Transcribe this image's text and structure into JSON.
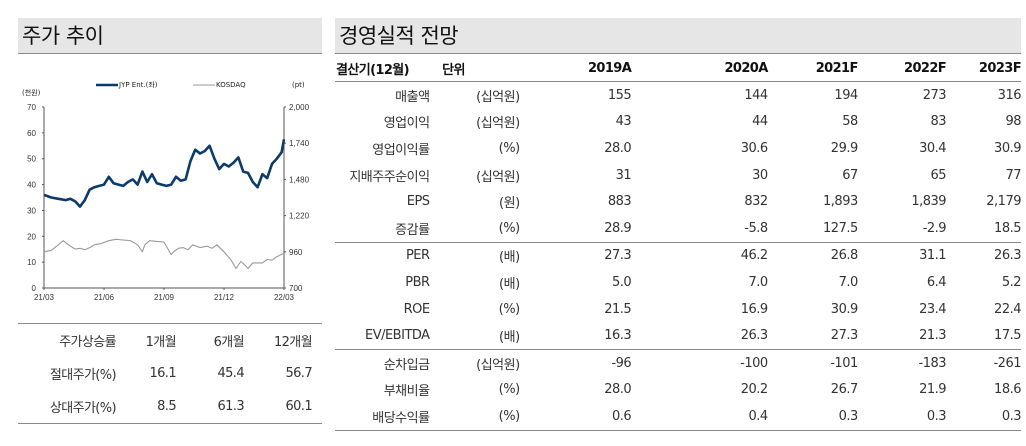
{
  "left_panel": {
    "title": "주가 추이",
    "returns_table": {
      "headers": [
        "주가상승률",
        "1개월",
        "6개월",
        "12개월"
      ],
      "rows": [
        {
          "label": "절대주가(%)",
          "values": [
            "16.1",
            "45.4",
            "56.7"
          ]
        },
        {
          "label": "상대주가(%)",
          "values": [
            "8.5",
            "61.3",
            "60.1"
          ]
        }
      ]
    }
  },
  "chart_data": {
    "type": "line",
    "title": "",
    "left_unit": "(천원)",
    "right_unit": "(pt)",
    "legend": [
      "JYP Ent.(좌)",
      "KOSDAQ"
    ],
    "legend_position": "top",
    "x_ticks": [
      "21/03",
      "21/06",
      "21/09",
      "21/12",
      "22/03"
    ],
    "y_left_ticks": [
      "0",
      "10",
      "20",
      "30",
      "40",
      "50",
      "60",
      "70"
    ],
    "y_left_range": [
      0,
      70
    ],
    "y_right_ticks": [
      "700",
      "960",
      "1,220",
      "1,480",
      "1,740",
      "2,000"
    ],
    "y_right_range": [
      700,
      2000
    ],
    "grid": false,
    "series": [
      {
        "name": "JYP Ent.(좌)",
        "axis": "left",
        "color": "#0b3a6b",
        "x_frac": [
          0,
          0.03,
          0.06,
          0.09,
          0.11,
          0.13,
          0.15,
          0.17,
          0.19,
          0.21,
          0.23,
          0.25,
          0.27,
          0.29,
          0.31,
          0.33,
          0.35,
          0.37,
          0.39,
          0.41,
          0.43,
          0.45,
          0.47,
          0.49,
          0.51,
          0.53,
          0.55,
          0.57,
          0.59,
          0.61,
          0.63,
          0.65,
          0.67,
          0.69,
          0.71,
          0.73,
          0.75,
          0.77,
          0.79,
          0.81,
          0.83,
          0.85,
          0.87,
          0.89,
          0.91,
          0.93,
          0.95,
          0.97,
          0.99,
          1.0
        ],
        "values": [
          36,
          35,
          34.5,
          34,
          34.5,
          33.5,
          31.5,
          34,
          38,
          39,
          39.5,
          40,
          43,
          40.5,
          40,
          39.5,
          41,
          42,
          40,
          45,
          41,
          44,
          40.5,
          40,
          39.5,
          40,
          43,
          41.5,
          42,
          49,
          53.5,
          52,
          53,
          55,
          50,
          46,
          48,
          47,
          48.5,
          50.5,
          45,
          44.5,
          41,
          39,
          44,
          42.5,
          48,
          50,
          52.5,
          57.5
        ]
      },
      {
        "name": "KOSDAQ",
        "axis": "right",
        "color": "#9a9a9a",
        "x_frac": [
          0,
          0.03,
          0.06,
          0.08,
          0.11,
          0.13,
          0.15,
          0.17,
          0.19,
          0.21,
          0.24,
          0.27,
          0.3,
          0.33,
          0.36,
          0.39,
          0.41,
          0.42,
          0.44,
          0.47,
          0.5,
          0.53,
          0.54,
          0.56,
          0.58,
          0.6,
          0.62,
          0.65,
          0.68,
          0.7,
          0.72,
          0.75,
          0.78,
          0.8,
          0.82,
          0.84,
          0.85,
          0.87,
          0.89,
          0.91,
          0.93,
          0.95,
          0.97,
          1.0
        ],
        "values": [
          960,
          970,
          1010,
          1040,
          1000,
          980,
          985,
          975,
          990,
          1010,
          1020,
          1040,
          1050,
          1045,
          1040,
          1010,
          960,
          1010,
          1040,
          1035,
          1030,
          940,
          960,
          985,
          990,
          975,
          1010,
          990,
          1000,
          985,
          1010,
          960,
          900,
          840,
          890,
          860,
          840,
          880,
          880,
          880,
          905,
          900,
          925,
          950
        ]
      }
    ]
  },
  "right_panel": {
    "title": "경영실적 전망",
    "header": {
      "label": "결산기(12월)",
      "unit": "단위",
      "years": [
        "2019A",
        "2020A",
        "2021F",
        "2022F",
        "2023F"
      ]
    },
    "groups": [
      [
        {
          "label": "매출액",
          "unit": "(십억원)",
          "values": [
            "155",
            "144",
            "194",
            "273",
            "316"
          ]
        },
        {
          "label": "영업이익",
          "unit": "(십억원)",
          "values": [
            "43",
            "44",
            "58",
            "83",
            "98"
          ]
        },
        {
          "label": "영업이익률",
          "unit": "(%)",
          "values": [
            "28.0",
            "30.6",
            "29.9",
            "30.4",
            "30.9"
          ]
        },
        {
          "label": "지배주주순이익",
          "unit": "(십억원)",
          "values": [
            "31",
            "30",
            "67",
            "65",
            "77"
          ]
        },
        {
          "label": "EPS",
          "unit": "(원)",
          "values": [
            "883",
            "832",
            "1,893",
            "1,839",
            "2,179"
          ]
        },
        {
          "label": "증감률",
          "unit": "(%)",
          "values": [
            "28.9",
            "-5.8",
            "127.5",
            "-2.9",
            "18.5"
          ]
        }
      ],
      [
        {
          "label": "PER",
          "unit": "(배)",
          "values": [
            "27.3",
            "46.2",
            "26.8",
            "31.1",
            "26.3"
          ]
        },
        {
          "label": "PBR",
          "unit": "(배)",
          "values": [
            "5.0",
            "7.0",
            "7.0",
            "6.4",
            "5.2"
          ]
        },
        {
          "label": "ROE",
          "unit": "(%)",
          "values": [
            "21.5",
            "16.9",
            "30.9",
            "23.4",
            "22.4"
          ]
        },
        {
          "label": "EV/EBITDA",
          "unit": "(배)",
          "values": [
            "16.3",
            "26.3",
            "27.3",
            "21.3",
            "17.5"
          ]
        }
      ],
      [
        {
          "label": "순차입금",
          "unit": "(십억원)",
          "values": [
            "-96",
            "-100",
            "-101",
            "-183",
            "-261"
          ]
        },
        {
          "label": "부채비율",
          "unit": "(%)",
          "values": [
            "28.0",
            "20.2",
            "26.7",
            "21.9",
            "18.6"
          ]
        },
        {
          "label": "배당수익률",
          "unit": "(%)",
          "values": [
            "0.6",
            "0.4",
            "0.3",
            "0.3",
            "0.3"
          ]
        }
      ]
    ]
  }
}
